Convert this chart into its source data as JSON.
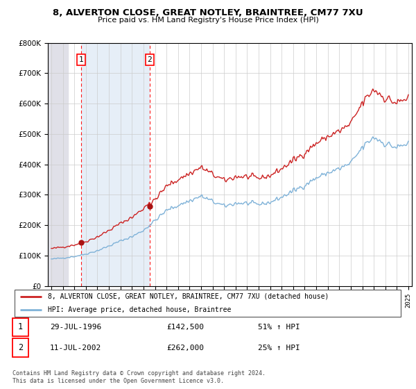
{
  "title1": "8, ALVERTON CLOSE, GREAT NOTLEY, BRAINTREE, CM77 7XU",
  "title2": "Price paid vs. HM Land Registry's House Price Index (HPI)",
  "legend_label1": "8, ALVERTON CLOSE, GREAT NOTLEY, BRAINTREE, CM77 7XU (detached house)",
  "legend_label2": "HPI: Average price, detached house, Braintree",
  "sale1_date": "29-JUL-1996",
  "sale1_price": "£142,500",
  "sale1_hpi": "51% ↑ HPI",
  "sale2_date": "11-JUL-2002",
  "sale2_price": "£262,000",
  "sale2_hpi": "25% ↑ HPI",
  "footer": "Contains HM Land Registry data © Crown copyright and database right 2024.\nThis data is licensed under the Open Government Licence v3.0.",
  "sale1_x": 1996.57,
  "sale1_y": 142500,
  "sale2_x": 2002.53,
  "sale2_y": 262000,
  "hpi_color": "#7fb2d8",
  "price_color": "#cc2222",
  "sale_dot_color": "#aa1111",
  "hatch_color": "#dce8f5",
  "left_hatch_color": "#e0e0e8",
  "ylim": [
    0,
    800000
  ],
  "xlim_left": 1993.7,
  "xlim_right": 2025.3
}
